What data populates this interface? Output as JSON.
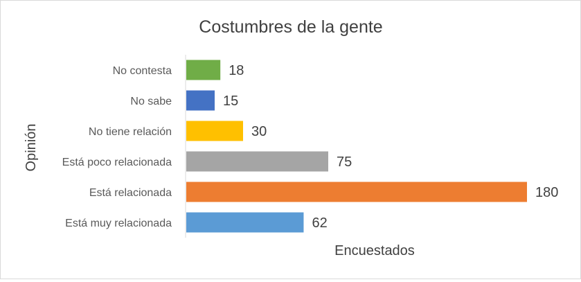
{
  "chart_data": {
    "type": "bar",
    "orientation": "horizontal",
    "title": "Costumbres de la gente",
    "xlabel": "Encuestados",
    "ylabel": "Opinión",
    "categories": [
      "No contesta",
      "No sabe",
      "No tiene relación",
      "Está poco relacionada",
      "Está relacionada",
      "Está muy relacionada"
    ],
    "values": [
      18,
      15,
      30,
      75,
      180,
      62
    ],
    "colors": [
      "#70ad47",
      "#4472c4",
      "#ffc000",
      "#a5a5a5",
      "#ed7d31",
      "#5b9bd5"
    ],
    "xlim": [
      0,
      180
    ],
    "grid": false,
    "legend": "none",
    "data_labels": true
  }
}
